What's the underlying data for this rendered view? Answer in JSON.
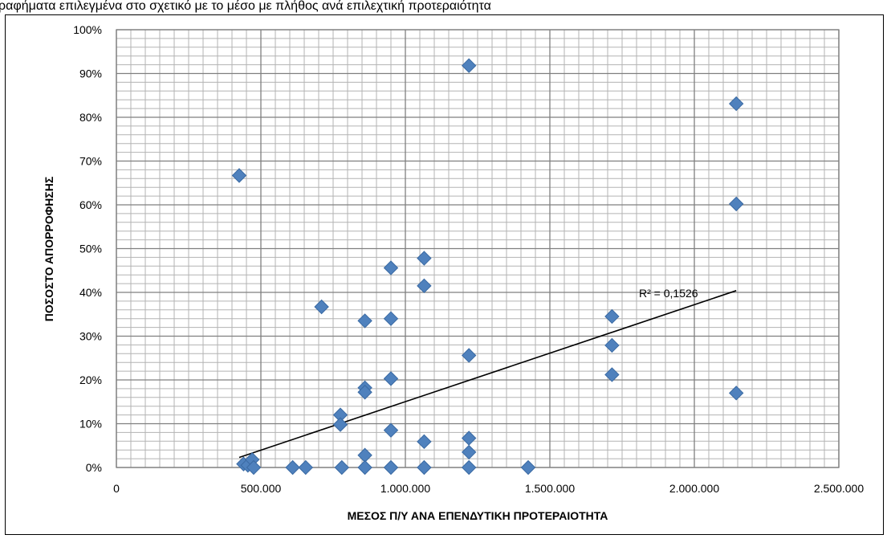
{
  "header_fragment": "ραφήματα επιλεγμένα στο σχετικό με το μέσο με πλήθος ανά επιλεχτική προτεραιότητα",
  "chart_data": {
    "type": "scatter",
    "title": "",
    "xlabel": "ΜΕΣΟΣ Π/Υ ΑΝΑ ΕΠΕΝΔΥΤΙΚΗ ΠΡΟΤΕΡΑΙΟΤΗΤΑ",
    "ylabel": "ΠΟΣΟΣΤΟ ΑΠΟΡΡΟΦΗΣΗΣ",
    "xlim": [
      0,
      2500000
    ],
    "ylim": [
      0,
      1
    ],
    "x_ticks": [
      0,
      500000,
      1000000,
      1500000,
      2000000,
      2500000
    ],
    "x_tick_labels": [
      "0",
      "500.000",
      "1.000.000",
      "1.500.000",
      "2.000.000",
      "2.500.000"
    ],
    "y_ticks": [
      0,
      0.1,
      0.2,
      0.3,
      0.4,
      0.5,
      0.6,
      0.7,
      0.8,
      0.9,
      1.0
    ],
    "y_tick_labels": [
      "0%",
      "10%",
      "20%",
      "30%",
      "40%",
      "50%",
      "60%",
      "70%",
      "80%",
      "90%",
      "100%"
    ],
    "grid": true,
    "marker_color": "#4F81BD",
    "series": [
      {
        "points": [
          [
            425000,
            0.667
          ],
          [
            440000,
            0.008
          ],
          [
            455000,
            0.005
          ],
          [
            470000,
            0.018
          ],
          [
            475000,
            0.0
          ],
          [
            610000,
            0.0
          ],
          [
            655000,
            0.0
          ],
          [
            710000,
            0.367
          ],
          [
            775000,
            0.12
          ],
          [
            775000,
            0.098
          ],
          [
            780000,
            0.0
          ],
          [
            860000,
            0.335
          ],
          [
            860000,
            0.182
          ],
          [
            860000,
            0.172
          ],
          [
            860000,
            0.028
          ],
          [
            860000,
            0.0
          ],
          [
            950000,
            0.456
          ],
          [
            950000,
            0.34
          ],
          [
            950000,
            0.203
          ],
          [
            950000,
            0.085
          ],
          [
            950000,
            0.0
          ],
          [
            1065000,
            0.478
          ],
          [
            1065000,
            0.415
          ],
          [
            1065000,
            0.059
          ],
          [
            1065000,
            0.0
          ],
          [
            1220000,
            0.918
          ],
          [
            1220000,
            0.256
          ],
          [
            1220000,
            0.067
          ],
          [
            1220000,
            0.035
          ],
          [
            1220000,
            0.0
          ],
          [
            1425000,
            0.0
          ],
          [
            1715000,
            0.345
          ],
          [
            1715000,
            0.279
          ],
          [
            1715000,
            0.212
          ],
          [
            2145000,
            0.831
          ],
          [
            2145000,
            0.602
          ],
          [
            2145000,
            0.17
          ]
        ]
      }
    ],
    "trendline": {
      "type": "linear",
      "x_range": [
        425000,
        2145000
      ],
      "y_range": [
        0.023,
        0.404
      ],
      "color": "#000000",
      "r2_label": "R² = 0,1526"
    }
  }
}
